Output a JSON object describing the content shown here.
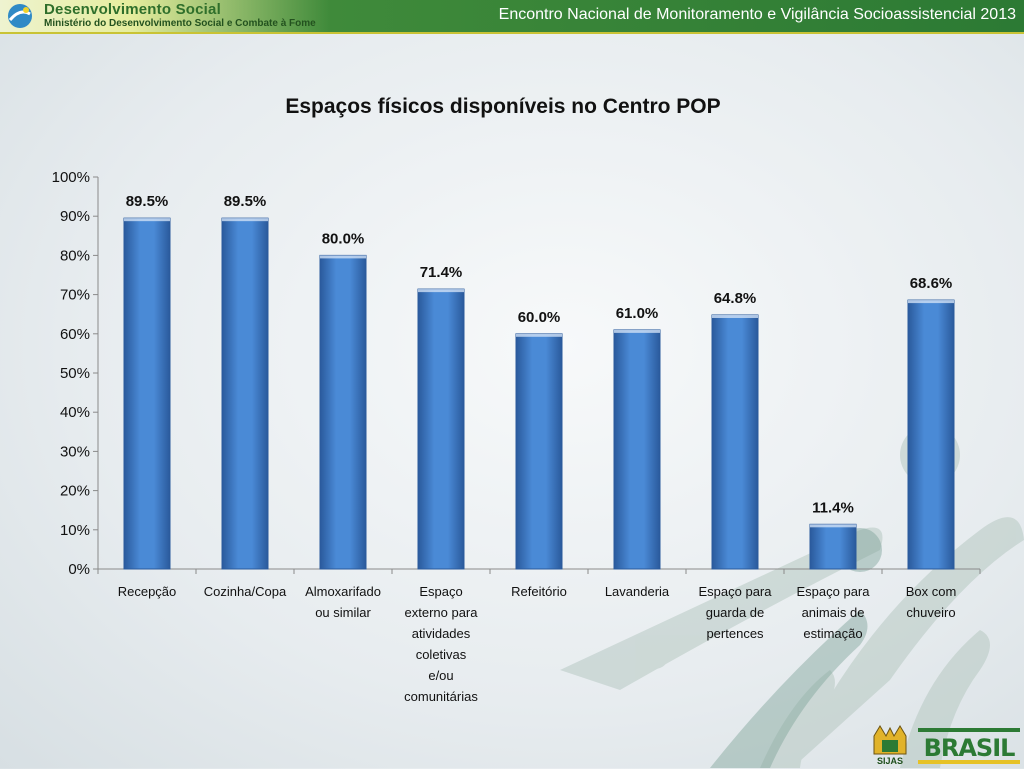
{
  "header": {
    "brand_title": "Desenvolvimento Social",
    "brand_subtitle": "Ministério do Desenvolvimento Social e Combate à Fome",
    "event_title": "Encontro Nacional de Monitoramento e Vigilância Socioassistencial 2013"
  },
  "footer": {
    "logo_sijas": "SIJAS",
    "logo_brasil": "BRASIL"
  },
  "colors": {
    "bar": "#3f7fcf",
    "bar_dark": "#2b5fa3",
    "header_green": "#2c7a34"
  },
  "chart_data": {
    "type": "bar",
    "title": "Espaços físicos disponíveis no Centro POP",
    "xlabel": "",
    "ylabel": "",
    "ylim": [
      0,
      100
    ],
    "yticks": [
      "0%",
      "10%",
      "20%",
      "30%",
      "40%",
      "50%",
      "60%",
      "70%",
      "80%",
      "90%",
      "100%"
    ],
    "categories": [
      "Recepção",
      "Cozinha/Copa",
      "Almoxarifado ou similar",
      "Espaço externo para atividades coletivas e/ou comunitárias",
      "Refeitório",
      "Lavanderia",
      "Espaço para guarda de pertences",
      "Espaço para animais de estimação",
      "Box com chuveiro"
    ],
    "category_lines": [
      [
        "Recepção"
      ],
      [
        "Cozinha/Copa"
      ],
      [
        "Almoxarifado",
        "ou similar"
      ],
      [
        "Espaço",
        "externo para",
        "atividades",
        "coletivas",
        "e/ou",
        "comunitárias"
      ],
      [
        "Refeitório"
      ],
      [
        "Lavanderia"
      ],
      [
        "Espaço para",
        "guarda de",
        "pertences"
      ],
      [
        "Espaço para",
        "animais de",
        "estimação"
      ],
      [
        "Box com",
        "chuveiro"
      ]
    ],
    "values": [
      89.5,
      89.5,
      80.0,
      71.4,
      60.0,
      61.0,
      64.8,
      11.4,
      68.6
    ],
    "labels": [
      "89.5%",
      "89.5%",
      "80.0%",
      "71.4%",
      "60.0%",
      "61.0%",
      "64.8%",
      "11.4%",
      "68.6%"
    ],
    "grid": false,
    "legend": "none"
  }
}
